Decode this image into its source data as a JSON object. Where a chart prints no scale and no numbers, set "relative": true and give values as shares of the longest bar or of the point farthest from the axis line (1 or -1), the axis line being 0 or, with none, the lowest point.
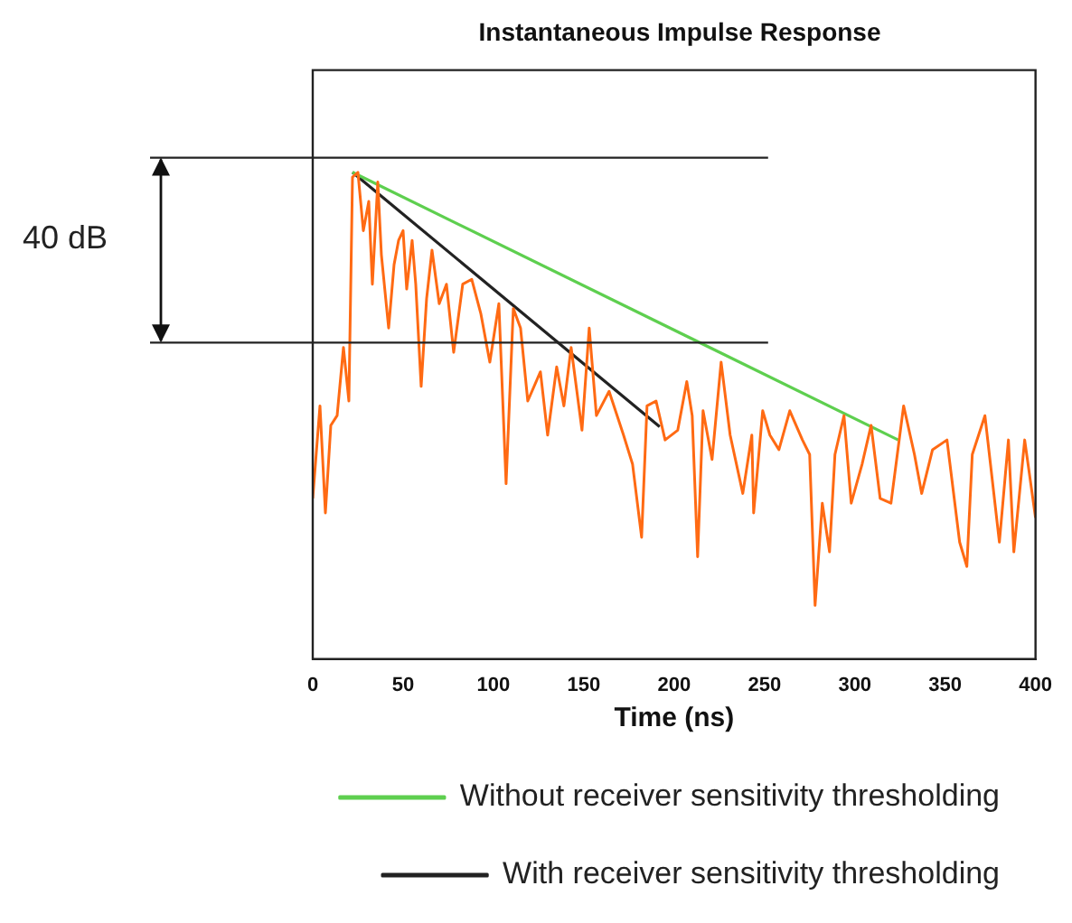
{
  "chart_data": {
    "type": "line",
    "title": "Instantaneous Impulse Response",
    "xlabel": "Time (ns)",
    "relative": true,
    "xlim": [
      0,
      400
    ],
    "xticks": [
      0,
      50,
      100,
      150,
      200,
      250,
      300,
      350,
      400
    ],
    "series": [
      {
        "color": "#ff6a13",
        "x": [
          0,
          4,
          7,
          10,
          13.5,
          17,
          20,
          22,
          25,
          28,
          31,
          33,
          36,
          38,
          42,
          45,
          47.5,
          50,
          52,
          55,
          57,
          60,
          63,
          66,
          70,
          74,
          78,
          83,
          88,
          93,
          98,
          103,
          107,
          111,
          115,
          119,
          126,
          130,
          135,
          139,
          143,
          149,
          153,
          157,
          164,
          172,
          177,
          182,
          185,
          190,
          195,
          202,
          207,
          210,
          213,
          216,
          221,
          226,
          231,
          238,
          243,
          244,
          249,
          253,
          258,
          264,
          271,
          275,
          278,
          282,
          286,
          289,
          294,
          298,
          304,
          309,
          314,
          320,
          327,
          333,
          337,
          343,
          351,
          358,
          362,
          365,
          372,
          380,
          385,
          388,
          394,
          400
        ],
        "values": [
          0.33,
          0.52,
          0.3,
          0.48,
          0.5,
          0.64,
          0.53,
          0.99,
          1.0,
          0.88,
          0.94,
          0.77,
          0.98,
          0.83,
          0.68,
          0.81,
          0.86,
          0.88,
          0.76,
          0.86,
          0.77,
          0.56,
          0.74,
          0.84,
          0.73,
          0.77,
          0.63,
          0.77,
          0.78,
          0.71,
          0.61,
          0.73,
          0.36,
          0.72,
          0.68,
          0.53,
          0.59,
          0.46,
          0.6,
          0.52,
          0.64,
          0.47,
          0.68,
          0.5,
          0.55,
          0.46,
          0.4,
          0.25,
          0.52,
          0.53,
          0.45,
          0.47,
          0.57,
          0.5,
          0.21,
          0.51,
          0.41,
          0.61,
          0.46,
          0.34,
          0.46,
          0.3,
          0.51,
          0.46,
          0.43,
          0.51,
          0.45,
          0.42,
          0.11,
          0.32,
          0.22,
          0.42,
          0.5,
          0.32,
          0.4,
          0.48,
          0.33,
          0.32,
          0.52,
          0.42,
          0.34,
          0.43,
          0.45,
          0.24,
          0.19,
          0.42,
          0.5,
          0.24,
          0.45,
          0.22,
          0.45,
          0.29
        ]
      },
      {
        "name": "Without receiver sensitivity thresholding",
        "color": "#5ecf4f",
        "x": [
          22,
          324
        ],
        "values": [
          1.0,
          0.45
        ]
      },
      {
        "name": "With receiver sensitivity thresholding",
        "color": "#222222",
        "x": [
          22,
          192
        ],
        "values": [
          1.0,
          0.477
        ]
      }
    ],
    "ref_lines": [
      {
        "axis": "y",
        "value": 1.03,
        "color": "#222222"
      },
      {
        "axis": "y",
        "value": 0.65,
        "color": "#222222"
      }
    ],
    "annotations": [
      "40 dB"
    ],
    "legend": "bottom",
    "grid": false
  }
}
